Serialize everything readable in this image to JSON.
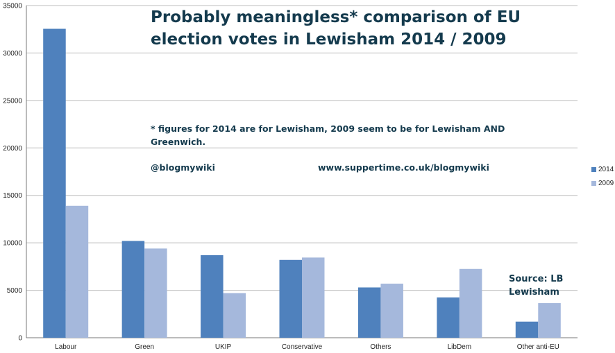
{
  "chart_data": {
    "type": "bar",
    "title": "Probably meaningless* comparison of EU election votes in Lewisham 2014 / 2009",
    "xlabel": "",
    "ylabel": "",
    "ylim": [
      0,
      35000
    ],
    "yticks": [
      0,
      5000,
      10000,
      15000,
      20000,
      25000,
      30000,
      35000
    ],
    "grid": true,
    "legend_position": "right",
    "categories": [
      "Labour",
      "Green",
      "UKIP",
      "Conservative",
      "Others",
      "LibDem",
      "Other anti-EU"
    ],
    "series": [
      {
        "name": "2014",
        "color": "#4f81bd",
        "values": [
          32550,
          10200,
          8700,
          8200,
          5300,
          4250,
          1700
        ]
      },
      {
        "name": "2009",
        "color": "#a5b8dc",
        "values": [
          13900,
          9400,
          4700,
          8450,
          5700,
          7250,
          3650
        ]
      }
    ],
    "annotations": {
      "footnote": "* figures for 2014 are for Lewisham, 2009 seem to be for Lewisham AND Greenwich.",
      "twitter": "@blogmywiki",
      "website": "www.suppertime.co.uk/blogmywiki",
      "source": "Source: LB Lewisham"
    }
  }
}
